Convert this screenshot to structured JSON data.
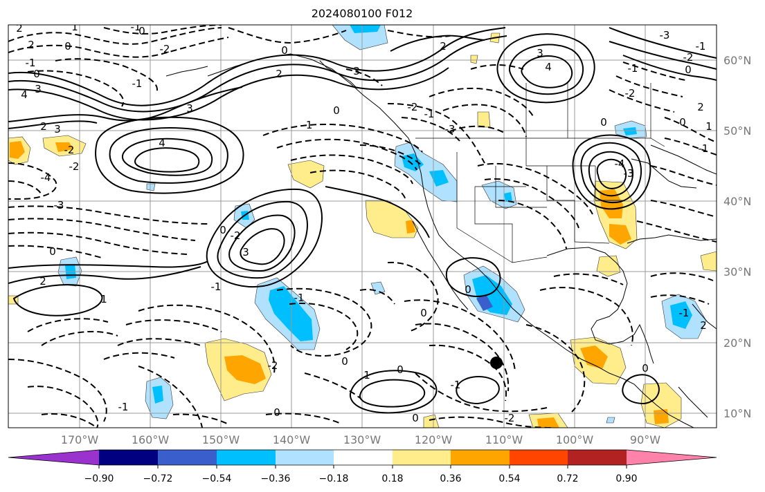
{
  "title": "2024080100 F012",
  "map": {
    "lat_labels": [
      "60°N",
      "50°N",
      "40°N",
      "30°N",
      "20°N",
      "10°N"
    ],
    "lon_labels": [
      "170°W",
      "160°W",
      "150°W",
      "140°W",
      "130°W",
      "120°W",
      "110°W",
      "100°W",
      "90°W"
    ],
    "grid": true,
    "contour_labels": [
      "2",
      "0",
      "-1",
      "0",
      "2",
      "-2",
      "-1",
      "0",
      "1",
      "4",
      "3",
      "2",
      "3",
      "-2",
      "-4",
      "0",
      "-3",
      "2",
      "-2",
      "4",
      "3",
      "-1",
      "0",
      "3",
      "-3",
      "-2",
      "-1",
      "0",
      "2",
      "4",
      "3",
      "2",
      "0",
      "-1",
      "-2",
      "-3",
      "-4",
      "-3",
      "-2",
      "-1",
      "0",
      "-1",
      "-1",
      "0",
      "2",
      "1",
      "3",
      "-2",
      "-1",
      "0",
      "1",
      "-1",
      "0",
      "0",
      "-2",
      "0",
      "0",
      "-1",
      "0",
      "2",
      "-2",
      "-1",
      "1",
      "0",
      "0",
      "-1"
    ]
  },
  "colorbar": {
    "ticks": [
      "−0.90",
      "−0.72",
      "−0.54",
      "−0.36",
      "−0.18",
      "0.18",
      "0.36",
      "0.54",
      "0.72",
      "0.90"
    ],
    "colors": [
      "#9a32cd",
      "#000080",
      "#3a5fcd",
      "#00bfff",
      "#b0e2ff",
      "#ffffff",
      "#ffec8b",
      "#ffa500",
      "#ff4500",
      "#b22222",
      "#ff82ab"
    ]
  }
}
